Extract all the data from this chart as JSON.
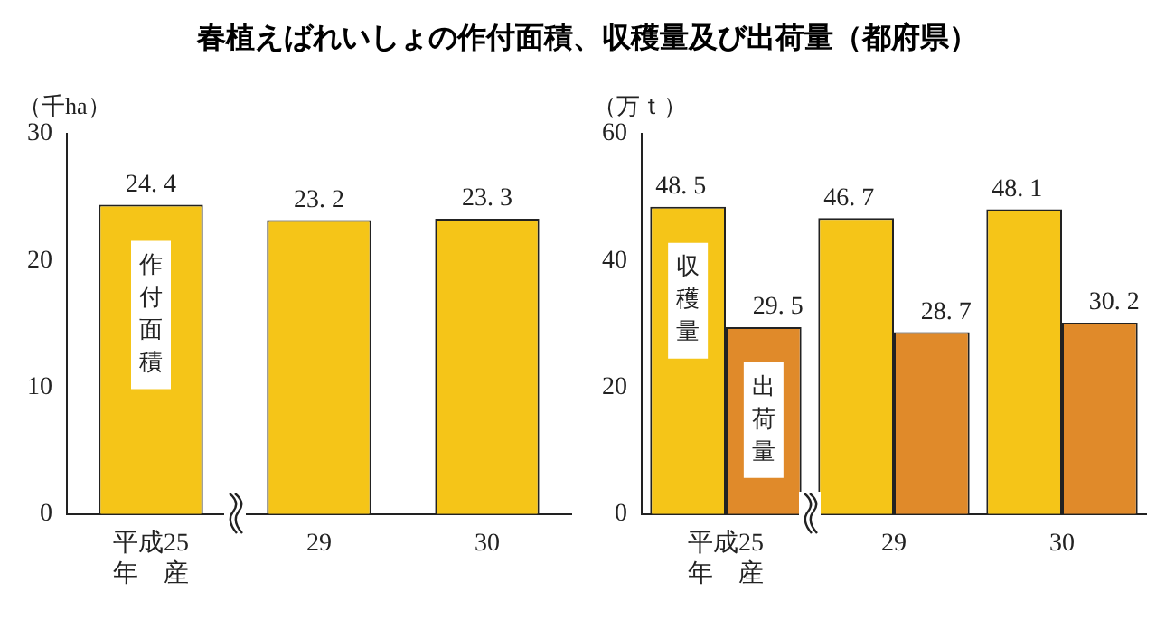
{
  "chart_data": [
    {
      "type": "bar",
      "title": "春植えばれいしょの作付面積、収穫量及び出荷量（都府県）",
      "ylabel": "（千ha）",
      "categories": [
        "平成25\n年　産",
        "29",
        "30"
      ],
      "series": [
        {
          "name": "作付面積",
          "color": "#f5c518",
          "values": [
            24.4,
            23.2,
            23.3
          ]
        }
      ],
      "ylim": [
        0,
        30
      ],
      "yticks": [
        0,
        10,
        20,
        30
      ],
      "grid": false,
      "legend": false,
      "data_labels": true
    },
    {
      "type": "bar",
      "ylabel": "（万ｔ）",
      "categories": [
        "平成25\n年　産",
        "29",
        "30"
      ],
      "series": [
        {
          "name": "収穫量",
          "color": "#f5c518",
          "values": [
            48.5,
            46.7,
            48.1
          ]
        },
        {
          "name": "出荷量",
          "color": "#e08a2a",
          "values": [
            29.5,
            28.7,
            30.2
          ]
        }
      ],
      "ylim": [
        0,
        60
      ],
      "yticks": [
        0,
        20,
        40,
        60
      ],
      "grid": false,
      "legend": false,
      "data_labels": true
    }
  ]
}
